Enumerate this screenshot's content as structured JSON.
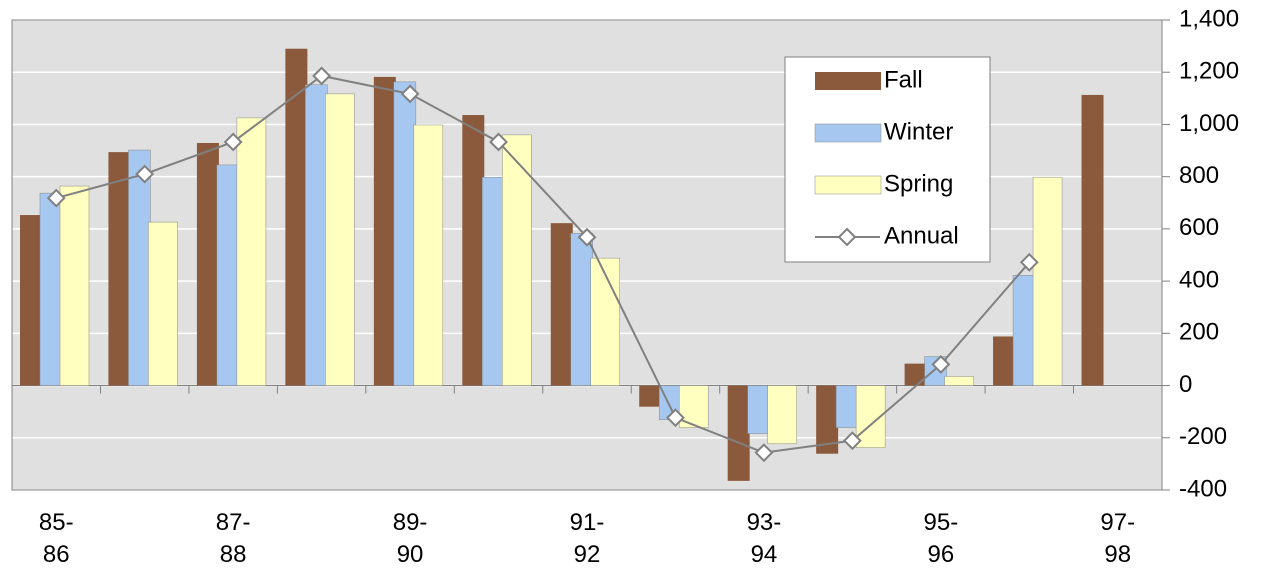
{
  "chart_data": {
    "type": "bar",
    "categories": [
      "85-86",
      null,
      "87-88",
      null,
      "89-90",
      null,
      "91-92",
      null,
      "93-94",
      null,
      "95-96",
      null,
      "97-98"
    ],
    "series": [
      {
        "name": "Fall",
        "color": "#8b5a3c",
        "values": [
          653,
          894,
          929,
          1290,
          1182,
          1036,
          622,
          -81,
          -365,
          -261,
          84,
          188,
          1113
        ]
      },
      {
        "name": "Winter",
        "color": "#a6c8f0",
        "values": [
          737,
          902,
          845,
          1152,
          1163,
          798,
          583,
          -131,
          -184,
          -161,
          111,
          422,
          null
        ]
      },
      {
        "name": "Spring",
        "color": "#ffffc0",
        "values": [
          764,
          626,
          1025,
          1117,
          998,
          960,
          488,
          -161,
          -223,
          -238,
          35,
          798,
          null
        ]
      },
      {
        "name": "Annual",
        "type": "line",
        "color": "#808080",
        "values": [
          718,
          810,
          933,
          1186,
          1117,
          933,
          568,
          -123,
          -257,
          -211,
          81,
          472,
          null
        ]
      }
    ],
    "ylim": [
      -400,
      1400
    ],
    "yticks": [
      -400,
      -200,
      0,
      200,
      400,
      600,
      800,
      {
        "value": 1000,
        "label": "1,000"
      },
      {
        "value": 1200,
        "label": "1,200"
      },
      {
        "value": 1400,
        "label": "1,400"
      }
    ],
    "y_axis_side": "right",
    "grid": true
  }
}
